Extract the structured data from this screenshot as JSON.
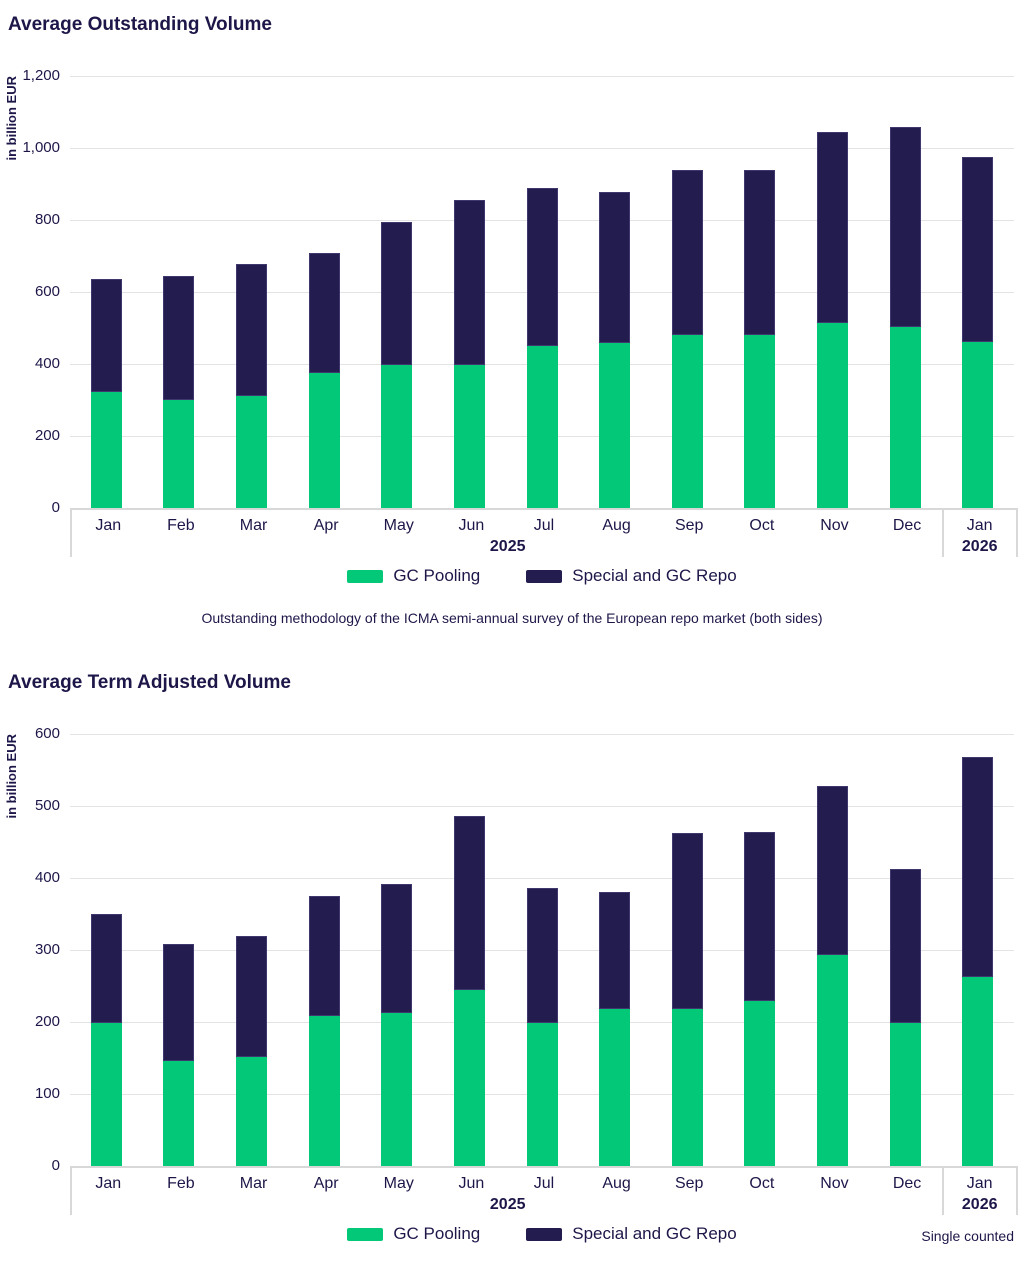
{
  "colors": {
    "gc_pooling": "#02C878",
    "special_gc_repo": "#231D4F",
    "text": "#1D1749",
    "gridline": "#E3E3E3",
    "axis_border": "#D8D8D8"
  },
  "chart_data": [
    {
      "type": "bar",
      "stacked": true,
      "title": "Average Outstanding Volume",
      "ylabel": "in billion EUR",
      "categories": [
        "Jan",
        "Feb",
        "Mar",
        "Apr",
        "May",
        "Jun",
        "Jul",
        "Aug",
        "Sep",
        "Oct",
        "Nov",
        "Dec",
        "Jan"
      ],
      "year_groups": [
        {
          "label": "2025",
          "span": 12
        },
        {
          "label": "2026",
          "span": 1
        }
      ],
      "series": [
        {
          "name": "GC Pooling",
          "color_key": "gc_pooling",
          "values": [
            323,
            300,
            310,
            375,
            397,
            397,
            449,
            459,
            481,
            480,
            513,
            503,
            461
          ]
        },
        {
          "name": "Special and GC Repo",
          "color_key": "special_gc_repo",
          "values": [
            314,
            345,
            367,
            333,
            398,
            458,
            439,
            419,
            458,
            458,
            532,
            554,
            513
          ]
        }
      ],
      "ylim": [
        0,
        1200
      ],
      "yticks": [
        0,
        200,
        400,
        600,
        800,
        1000,
        1200
      ],
      "ytick_labels": [
        "0",
        "200",
        "400",
        "600",
        "800",
        "1,000",
        "1,200"
      ],
      "grid": "horizontal",
      "legend_position": "bottom",
      "footnote": "Outstanding methodology of the ICMA semi-annual survey of the European repo market (both sides)"
    },
    {
      "type": "bar",
      "stacked": true,
      "title": "Average Term Adjusted Volume",
      "ylabel": "in billion EUR",
      "categories": [
        "Jan",
        "Feb",
        "Mar",
        "Apr",
        "May",
        "Jun",
        "Jul",
        "Aug",
        "Sep",
        "Oct",
        "Nov",
        "Dec",
        "Jan"
      ],
      "year_groups": [
        {
          "label": "2025",
          "span": 12
        },
        {
          "label": "2026",
          "span": 1
        }
      ],
      "series": [
        {
          "name": "GC Pooling",
          "color_key": "gc_pooling",
          "values": [
            198,
            146,
            151,
            209,
            213,
            245,
            198,
            218,
            218,
            229,
            293,
            198,
            262
          ]
        },
        {
          "name": "Special and GC Repo",
          "color_key": "special_gc_repo",
          "values": [
            152,
            162,
            168,
            166,
            178,
            241,
            188,
            163,
            245,
            235,
            235,
            214,
            306
          ]
        }
      ],
      "ylim": [
        0,
        600
      ],
      "yticks": [
        0,
        100,
        200,
        300,
        400,
        500,
        600
      ],
      "ytick_labels": [
        "0",
        "100",
        "200",
        "300",
        "400",
        "500",
        "600"
      ],
      "grid": "horizontal",
      "legend_position": "bottom",
      "note": "Single counted"
    }
  ]
}
